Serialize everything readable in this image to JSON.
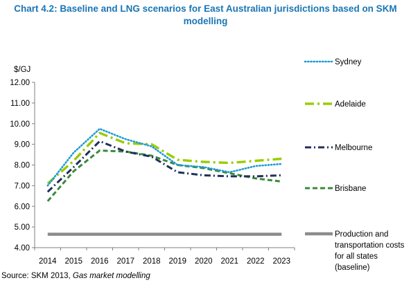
{
  "chart_data": {
    "type": "line",
    "title": "Chart 4.2:  Baseline and LNG scenarios for East Australian jurisdictions based on SKM modelling",
    "ylabel": "$/GJ",
    "xlabel": "",
    "ylim": [
      4.0,
      12.0
    ],
    "yticks": [
      "4.00",
      "5.00",
      "6.00",
      "7.00",
      "8.00",
      "9.00",
      "10.00",
      "11.00",
      "12.00"
    ],
    "categories": [
      "2014",
      "2015",
      "2016",
      "2017",
      "2018",
      "2019",
      "2020",
      "2021",
      "2022",
      "2023"
    ],
    "grid": false,
    "legend_position": "right",
    "series": [
      {
        "name": "Sydney",
        "color": "#1f9ad6",
        "dash": "dotted",
        "values": [
          7.0,
          8.6,
          9.75,
          9.25,
          8.9,
          8.0,
          7.9,
          7.65,
          7.95,
          8.05
        ]
      },
      {
        "name": "Adelaide",
        "color": "#99cc00",
        "dash": "dashdot-long",
        "values": [
          7.1,
          8.2,
          9.55,
          9.05,
          9.0,
          8.25,
          8.15,
          8.1,
          8.2,
          8.3
        ]
      },
      {
        "name": "Melbourne",
        "color": "#1f2f5a",
        "dash": "dashdot",
        "values": [
          6.7,
          7.9,
          9.15,
          8.65,
          8.4,
          7.65,
          7.5,
          7.45,
          7.45,
          7.5
        ]
      },
      {
        "name": "Brisbane",
        "color": "#3a8a3a",
        "dash": "dashed",
        "values": [
          6.25,
          7.7,
          8.7,
          8.65,
          8.45,
          8.0,
          7.85,
          7.6,
          7.35,
          7.2
        ]
      },
      {
        "name": "Production and transportation costs for all states (baseline)",
        "name_lines": [
          "Production and",
          "transportation costs",
          "for all states",
          "(baseline)"
        ],
        "color": "#8c8c8c",
        "dash": "solid",
        "values": [
          4.65,
          4.65,
          4.65,
          4.65,
          4.65,
          4.65,
          4.65,
          4.65,
          4.65,
          4.65
        ]
      }
    ]
  },
  "source": {
    "prefix": "Source: SKM 2013, ",
    "italic": "Gas market modelling"
  }
}
